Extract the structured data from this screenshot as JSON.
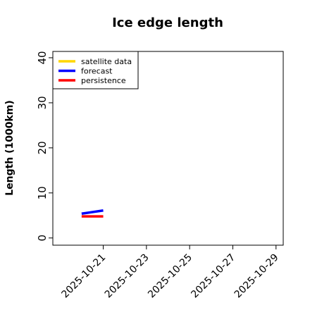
{
  "chart_data": {
    "type": "line",
    "title": "Ice edge length",
    "ylabel": "Length (1000km)",
    "x": [
      "2025-10-20",
      "2025-10-21"
    ],
    "series": [
      {
        "name": "satellite data",
        "color": "#ffd700",
        "values": [
          null,
          null
        ]
      },
      {
        "name": "forecast",
        "color": "#0000ff",
        "values": [
          5.4,
          6.1
        ]
      },
      {
        "name": "persistence",
        "color": "#ff0000",
        "values": [
          4.8,
          4.8
        ]
      }
    ],
    "xlim": [
      "2025-10-18T16:00",
      "2025-10-29T08:00"
    ],
    "xticks": [
      "2025-10-21",
      "2025-10-23",
      "2025-10-25",
      "2025-10-27",
      "2025-10-29"
    ],
    "xtick_label_colors": [
      "#228b22",
      "#000000",
      "#000000",
      "#000000",
      "#000000"
    ],
    "ylim": [
      -1.6,
      41.4
    ],
    "yticks": [
      0,
      10,
      20,
      30,
      40
    ],
    "legend": "top-left"
  }
}
